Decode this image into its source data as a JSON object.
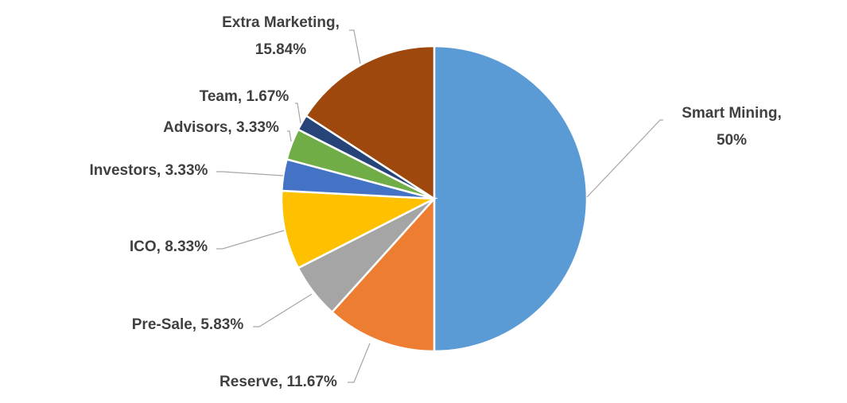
{
  "chart_data": {
    "type": "pie",
    "start_angle_deg": 0,
    "direction": "clockwise",
    "title": "",
    "slices": [
      {
        "name": "Smart Mining",
        "value": 50,
        "label_lines": [
          "Smart Mining,",
          "50%"
        ],
        "color": "#5B9BD5"
      },
      {
        "name": "Reserve",
        "value": 11.67,
        "label_lines": [
          "Reserve, 11.67%"
        ],
        "color": "#ED7D31"
      },
      {
        "name": "Pre-Sale",
        "value": 5.83,
        "label_lines": [
          "Pre-Sale, 5.83%"
        ],
        "color": "#A5A5A5"
      },
      {
        "name": "ICO",
        "value": 8.33,
        "label_lines": [
          "ICO, 8.33%"
        ],
        "color": "#FFC000"
      },
      {
        "name": "Investors",
        "value": 3.33,
        "label_lines": [
          "Investors, 3.33%"
        ],
        "color": "#4472C4"
      },
      {
        "name": "Advisors",
        "value": 3.33,
        "label_lines": [
          "Advisors, 3.33%"
        ],
        "color": "#70AD47"
      },
      {
        "name": "Team",
        "value": 1.67,
        "label_lines": [
          "Team, 1.67%"
        ],
        "color": "#264478"
      },
      {
        "name": "Extra Marketing",
        "value": 15.84,
        "label_lines": [
          "Extra Marketing,",
          "15.84%"
        ],
        "color": "#9E480E"
      }
    ]
  }
}
